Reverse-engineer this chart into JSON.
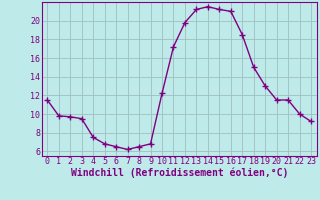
{
  "x": [
    0,
    1,
    2,
    3,
    4,
    5,
    6,
    7,
    8,
    9,
    10,
    11,
    12,
    13,
    14,
    15,
    16,
    17,
    18,
    19,
    20,
    21,
    22,
    23
  ],
  "y": [
    11.5,
    9.8,
    9.7,
    9.5,
    7.5,
    6.8,
    6.5,
    6.2,
    6.5,
    6.8,
    12.2,
    17.2,
    19.8,
    21.2,
    21.5,
    21.2,
    21.0,
    18.5,
    15.0,
    13.0,
    11.5,
    11.5,
    10.0,
    9.2
  ],
  "line_color": "#800080",
  "marker": "+",
  "marker_size": 4,
  "marker_lw": 1.0,
  "bg_color": "#beeaea",
  "grid_color": "#9ebebe",
  "xlabel": "Windchill (Refroidissement éolien,°C)",
  "xlabel_fontsize": 7,
  "tick_color": "#800080",
  "tick_fontsize": 6,
  "ylim": [
    5.5,
    22.0
  ],
  "yticks": [
    6,
    8,
    10,
    12,
    14,
    16,
    18,
    20
  ],
  "xlim": [
    -0.5,
    23.5
  ],
  "xticks": [
    0,
    1,
    2,
    3,
    4,
    5,
    6,
    7,
    8,
    9,
    10,
    11,
    12,
    13,
    14,
    15,
    16,
    17,
    18,
    19,
    20,
    21,
    22,
    23
  ],
  "spine_color": "#800080",
  "linewidth": 1.0
}
